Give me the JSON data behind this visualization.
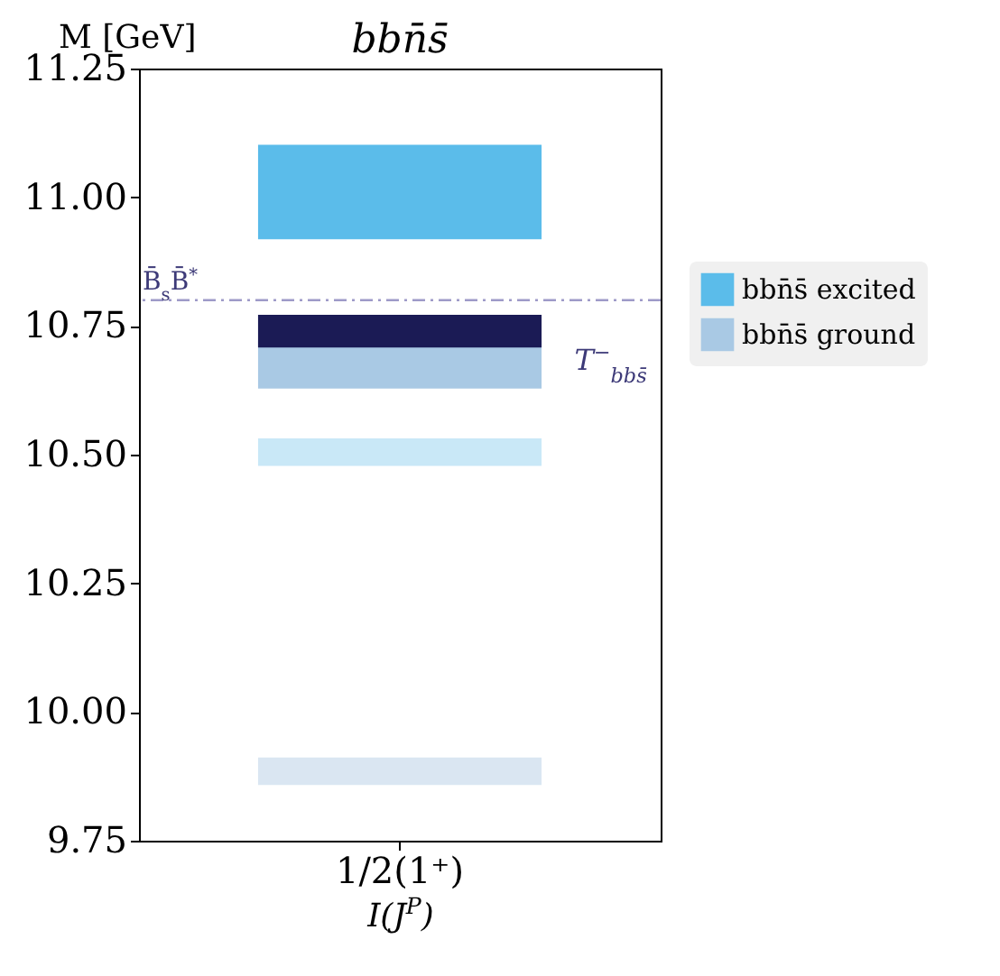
{
  "chart_data": {
    "type": "bar",
    "title": "bbn̄s̄",
    "ylabel": "M [GeV]",
    "xlabel": "I(J$^{P}$)",
    "categories": [
      "1/2(1⁺)"
    ],
    "series": [
      {
        "name": "bbn̄s̄ excited",
        "color": "#5bbcea",
        "base": [
          10.92
        ],
        "values": [
          0.18
        ]
      },
      {
        "name": "bbn̄s̄ ground",
        "color": "#a9c9e4",
        "base": [
          10.63
        ],
        "values": [
          0.09
        ]
      },
      {
        "color": "#c9e8f7",
        "base": [
          10.48
        ],
        "values": [
          0.05
        ]
      },
      {
        "color": "#dae6f2",
        "base": [
          9.86
        ],
        "values": [
          0.05
        ]
      },
      {
        "color": "#1b1b55",
        "base": [
          10.71
        ],
        "values": [
          0.06
        ]
      }
    ],
    "ylim": [
      9.75,
      11.25
    ],
    "yticks": [
      {
        "value": 9.75,
        "label": "9.75"
      },
      {
        "value": 10,
        "label": "10.00"
      },
      {
        "value": 10.25,
        "label": "10.25"
      },
      {
        "value": 10.5,
        "label": "10.50"
      },
      {
        "value": 10.75,
        "label": "10.75"
      },
      {
        "value": 11,
        "label": "11.00"
      },
      {
        "value": 11.25,
        "label": "11.25"
      }
    ],
    "ref_lines": [
      {
        "axis": "y",
        "value": 10.8,
        "label": "B̄$_{s}$B̄$^{*}$",
        "color": "#9e9ac8",
        "line_style": "dashed"
      }
    ],
    "annotations": [
      "T$^{−}$$_{bbs̄}$"
    ],
    "grid": false,
    "legend": "right"
  }
}
